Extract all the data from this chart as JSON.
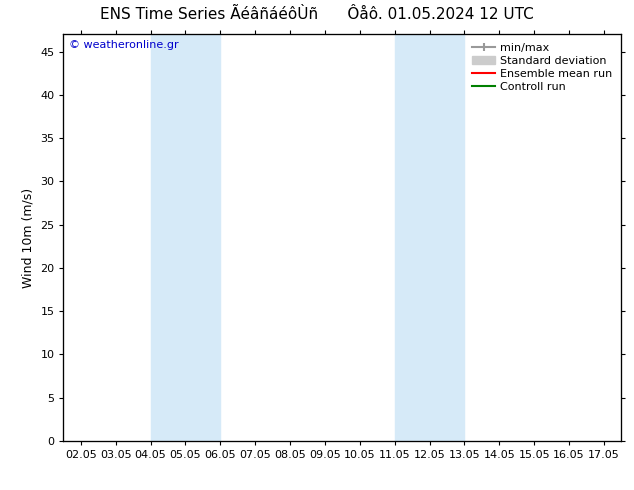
{
  "title_left": "ENS Time Series ÃéâñáéôÙñ",
  "title_right": "Ôåô. 01.05.2024 12 UTC",
  "ylabel": "Wind 10m (m/s)",
  "watermark": "© weatheronline.gr",
  "watermark_color": "#0000cc",
  "ylim": [
    0,
    47
  ],
  "yticks": [
    0,
    5,
    10,
    15,
    20,
    25,
    30,
    35,
    40,
    45
  ],
  "xtick_labels": [
    "02.05",
    "03.05",
    "04.05",
    "05.05",
    "06.05",
    "07.05",
    "08.05",
    "09.05",
    "10.05",
    "11.05",
    "12.05",
    "13.05",
    "14.05",
    "15.05",
    "16.05",
    "17.05"
  ],
  "shaded_bands": [
    {
      "xstart": "04.05",
      "xend": "06.05"
    },
    {
      "xstart": "11.05",
      "xend": "13.05"
    }
  ],
  "shade_color": "#d6eaf8",
  "legend_entries": [
    {
      "label": "min/max",
      "color": "#999999",
      "lw": 1.5
    },
    {
      "label": "Standard deviation",
      "color": "#cccccc",
      "lw": 6
    },
    {
      "label": "Ensemble mean run",
      "color": "#ff0000",
      "lw": 1.5
    },
    {
      "label": "Controll run",
      "color": "#008000",
      "lw": 1.5
    }
  ],
  "bg_color": "#ffffff",
  "plot_bg_color": "#ffffff",
  "title_fontsize": 11,
  "ylabel_fontsize": 9,
  "tick_fontsize": 8,
  "legend_fontsize": 8,
  "watermark_fontsize": 8
}
